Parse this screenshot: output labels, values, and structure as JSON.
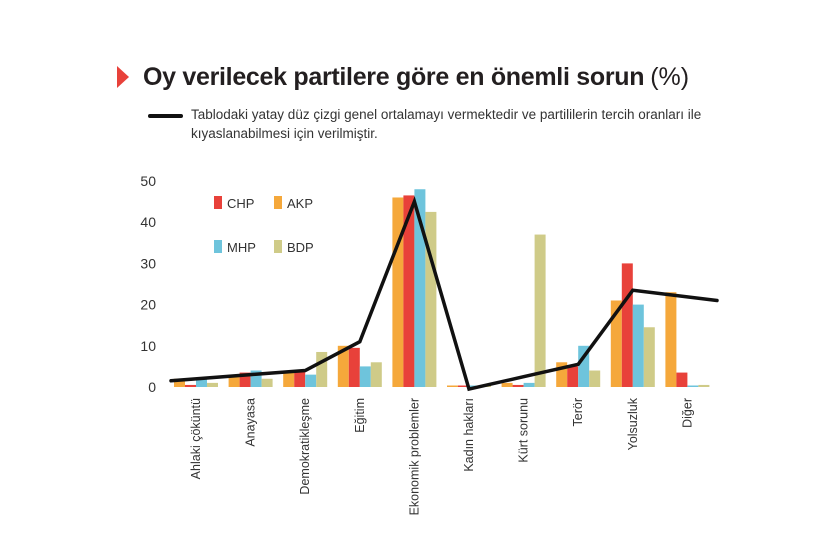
{
  "header": {
    "title": "Oy verilecek partilere göre en önemli sorun",
    "title_unit": "(%)",
    "note": "Tablodaki yatay düz çizgi genel ortalamayı vermektedir ve partililerin tercih oranları ile kıyaslanabilmesi için verilmiştir."
  },
  "chart_data": {
    "type": "bar",
    "categories": [
      "Ahlaki çöküntü",
      "Anayasa",
      "Demokratikleşme",
      "Eğitim",
      "Ekonomik problemler",
      "Kadın hakları",
      "Kürt sorunu",
      "Terör",
      "Yolsuzluk",
      "Diğer"
    ],
    "series": [
      {
        "name": "AKP",
        "color": "#f5a83b",
        "values": [
          2,
          3,
          4,
          10,
          46,
          0,
          1,
          6,
          21,
          23
        ]
      },
      {
        "name": "CHP",
        "color": "#e8413a",
        "values": [
          0.5,
          3.5,
          4,
          9.5,
          46.5,
          0.3,
          0.5,
          5,
          30,
          3.5
        ]
      },
      {
        "name": "MHP",
        "color": "#6ec4dc",
        "values": [
          2,
          4,
          3,
          5,
          48,
          0.3,
          1,
          10,
          20,
          0.2
        ]
      },
      {
        "name": "BDP",
        "color": "#cfcb88",
        "values": [
          1,
          2,
          8.5,
          6,
          42.5,
          0.3,
          37,
          4,
          14.5,
          0.5
        ]
      }
    ],
    "line": {
      "color": "#111111",
      "values": [
        1.5,
        3,
        4,
        11,
        45,
        -0.5,
        2.5,
        5.5,
        23.5,
        21
      ]
    },
    "yticks": [
      0,
      10,
      20,
      30,
      40,
      50
    ],
    "ylim": [
      0,
      50
    ],
    "legend": {
      "placement": "top-left",
      "order": [
        "CHP",
        "AKP",
        "MHP",
        "BDP"
      ]
    }
  }
}
